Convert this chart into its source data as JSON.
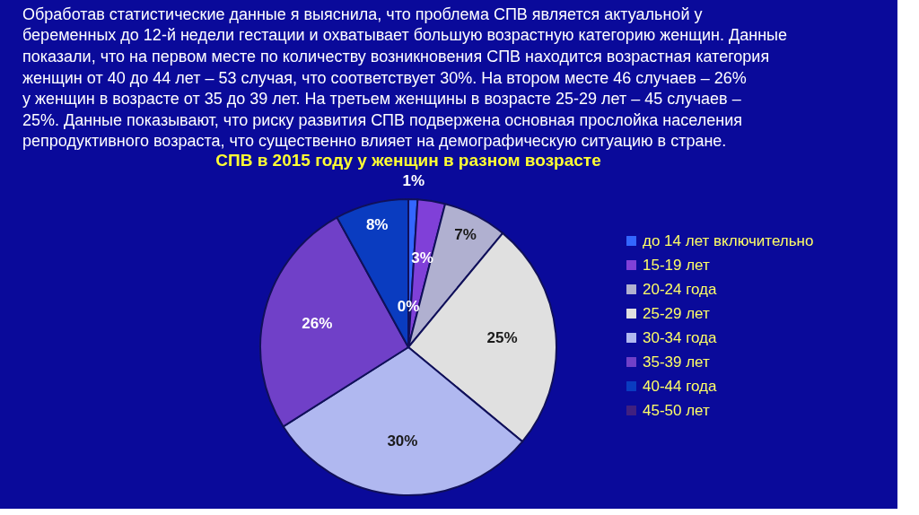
{
  "chart_data": {
    "type": "pie",
    "title": "СПВ в 2015 году  у женщин в разном возрасте",
    "annotations": [
      "Обработав статистические данные я выяснила, что проблема СПВ является актуальной у беременных до 12-й недели гестации и охватывает большую возрастную категорию женщин. Данные показали, что на первом месте по количеству возникновения СПВ находится возрастная категория женщин от 40 до 44 лет – 53 случая, что соответствует 30%. На втором месте 46 случаев – 26% у женщин в возрасте от 35 до 39 лет. На третьем женщины в возрасте 25-29 лет – 45 случаев – 25%. Данные показывают, что риску развития СПВ подвержена основная прослойка населения репродуктивного возраста, что существенно влияет на демографическую ситуацию в стране."
    ],
    "categories": [
      "до 14 лет включительно",
      "15-19 лет",
      "20-24 года",
      "25-29 лет",
      "30-34 года",
      "35-39 лет",
      "40-44 года",
      "45-50 лет"
    ],
    "values": [
      1,
      3,
      7,
      25,
      30,
      26,
      8,
      0
    ],
    "value_labels": [
      "1%",
      "3%",
      "7%",
      "25%",
      "30%",
      "26%",
      "8%",
      "0%"
    ],
    "colors": [
      "#3366ff",
      "#8040d8",
      "#b0b0d0",
      "#e0e0e0",
      "#b0b8f0",
      "#7040c8",
      "#0a3cc0",
      "#402080"
    ],
    "legend": "right"
  }
}
